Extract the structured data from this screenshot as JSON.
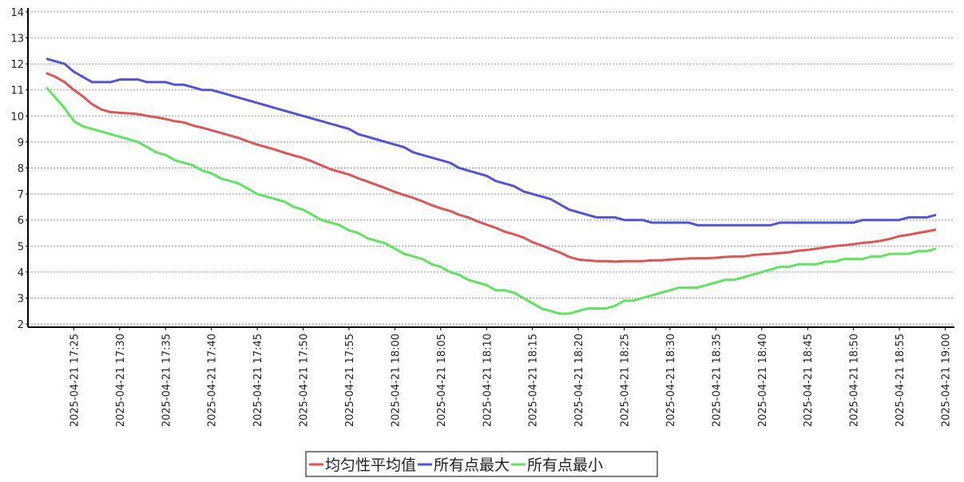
{
  "chart_data": {
    "type": "line",
    "x": [
      "2025-04-21 17:22",
      "2025-04-21 17:23",
      "2025-04-21 17:24",
      "2025-04-21 17:25",
      "2025-04-21 17:26",
      "2025-04-21 17:27",
      "2025-04-21 17:28",
      "2025-04-21 17:29",
      "2025-04-21 17:30",
      "2025-04-21 17:31",
      "2025-04-21 17:32",
      "2025-04-21 17:33",
      "2025-04-21 17:34",
      "2025-04-21 17:35",
      "2025-04-21 17:36",
      "2025-04-21 17:37",
      "2025-04-21 17:38",
      "2025-04-21 17:39",
      "2025-04-21 17:40",
      "2025-04-21 17:41",
      "2025-04-21 17:42",
      "2025-04-21 17:43",
      "2025-04-21 17:44",
      "2025-04-21 17:45",
      "2025-04-21 17:46",
      "2025-04-21 17:47",
      "2025-04-21 17:48",
      "2025-04-21 17:49",
      "2025-04-21 17:50",
      "2025-04-21 17:51",
      "2025-04-21 17:52",
      "2025-04-21 17:53",
      "2025-04-21 17:54",
      "2025-04-21 17:55",
      "2025-04-21 17:56",
      "2025-04-21 17:57",
      "2025-04-21 17:58",
      "2025-04-21 17:59",
      "2025-04-21 18:00",
      "2025-04-21 18:01",
      "2025-04-21 18:02",
      "2025-04-21 18:03",
      "2025-04-21 18:04",
      "2025-04-21 18:05",
      "2025-04-21 18:06",
      "2025-04-21 18:07",
      "2025-04-21 18:08",
      "2025-04-21 18:09",
      "2025-04-21 18:10",
      "2025-04-21 18:11",
      "2025-04-21 18:12",
      "2025-04-21 18:13",
      "2025-04-21 18:14",
      "2025-04-21 18:15",
      "2025-04-21 18:16",
      "2025-04-21 18:17",
      "2025-04-21 18:18",
      "2025-04-21 18:19",
      "2025-04-21 18:20",
      "2025-04-21 18:21",
      "2025-04-21 18:22",
      "2025-04-21 18:23",
      "2025-04-21 18:24",
      "2025-04-21 18:25",
      "2025-04-21 18:26",
      "2025-04-21 18:27",
      "2025-04-21 18:28",
      "2025-04-21 18:29",
      "2025-04-21 18:30",
      "2025-04-21 18:31",
      "2025-04-21 18:32",
      "2025-04-21 18:33",
      "2025-04-21 18:34",
      "2025-04-21 18:35",
      "2025-04-21 18:36",
      "2025-04-21 18:37",
      "2025-04-21 18:38",
      "2025-04-21 18:39",
      "2025-04-21 18:40",
      "2025-04-21 18:41",
      "2025-04-21 18:42",
      "2025-04-21 18:43",
      "2025-04-21 18:44",
      "2025-04-21 18:45",
      "2025-04-21 18:46",
      "2025-04-21 18:47",
      "2025-04-21 18:48",
      "2025-04-21 18:49",
      "2025-04-21 18:50",
      "2025-04-21 18:51",
      "2025-04-21 18:52",
      "2025-04-21 18:53",
      "2025-04-21 18:54",
      "2025-04-21 18:55",
      "2025-04-21 18:56",
      "2025-04-21 18:57",
      "2025-04-21 18:58",
      "2025-04-21 18:59"
    ],
    "series": [
      {
        "name": "均匀性平均值",
        "color": "#e65252",
        "values": [
          11.65,
          11.5,
          11.3,
          11.0,
          10.75,
          10.45,
          10.25,
          10.15,
          10.12,
          10.1,
          10.07,
          10.0,
          9.95,
          9.88,
          9.8,
          9.75,
          9.63,
          9.55,
          9.45,
          9.35,
          9.25,
          9.15,
          9.02,
          8.9,
          8.8,
          8.7,
          8.58,
          8.48,
          8.38,
          8.25,
          8.1,
          7.95,
          7.85,
          7.75,
          7.6,
          7.48,
          7.35,
          7.22,
          7.08,
          6.96,
          6.85,
          6.72,
          6.57,
          6.45,
          6.35,
          6.2,
          6.1,
          5.95,
          5.82,
          5.7,
          5.55,
          5.45,
          5.33,
          5.15,
          5.02,
          4.88,
          4.75,
          4.58,
          4.48,
          4.45,
          4.42,
          4.42,
          4.4,
          4.42,
          4.42,
          4.42,
          4.45,
          4.45,
          4.48,
          4.5,
          4.52,
          4.53,
          4.53,
          4.55,
          4.58,
          4.6,
          4.6,
          4.65,
          4.68,
          4.7,
          4.73,
          4.76,
          4.82,
          4.85,
          4.9,
          4.95,
          5.0,
          5.03,
          5.07,
          5.12,
          5.15,
          5.2,
          5.28,
          5.38,
          5.43,
          5.5,
          5.56,
          5.63
        ]
      },
      {
        "name": "所有点最大",
        "color": "#5252e0",
        "values": [
          12.2,
          12.1,
          12.0,
          11.7,
          11.5,
          11.3,
          11.3,
          11.3,
          11.4,
          11.4,
          11.4,
          11.3,
          11.3,
          11.3,
          11.2,
          11.2,
          11.1,
          11.0,
          11.0,
          10.9,
          10.8,
          10.7,
          10.6,
          10.5,
          10.4,
          10.3,
          10.2,
          10.1,
          10.0,
          9.9,
          9.8,
          9.7,
          9.6,
          9.5,
          9.3,
          9.2,
          9.1,
          9.0,
          8.9,
          8.8,
          8.6,
          8.5,
          8.4,
          8.3,
          8.2,
          8.0,
          7.9,
          7.8,
          7.7,
          7.5,
          7.4,
          7.3,
          7.1,
          7.0,
          6.9,
          6.8,
          6.6,
          6.4,
          6.3,
          6.2,
          6.1,
          6.1,
          6.1,
          6.0,
          6.0,
          6.0,
          5.9,
          5.9,
          5.9,
          5.9,
          5.9,
          5.8,
          5.8,
          5.8,
          5.8,
          5.8,
          5.8,
          5.8,
          5.8,
          5.8,
          5.9,
          5.9,
          5.9,
          5.9,
          5.9,
          5.9,
          5.9,
          5.9,
          5.9,
          6.0,
          6.0,
          6.0,
          6.0,
          6.0,
          6.1,
          6.1,
          6.1,
          6.2
        ]
      },
      {
        "name": "所有点最小",
        "color": "#5ce65c",
        "values": [
          11.1,
          10.7,
          10.3,
          9.8,
          9.6,
          9.5,
          9.4,
          9.3,
          9.2,
          9.1,
          9.0,
          8.8,
          8.6,
          8.5,
          8.3,
          8.2,
          8.1,
          7.9,
          7.8,
          7.6,
          7.5,
          7.4,
          7.2,
          7.0,
          6.9,
          6.8,
          6.7,
          6.5,
          6.4,
          6.2,
          6.0,
          5.9,
          5.8,
          5.6,
          5.5,
          5.3,
          5.2,
          5.1,
          4.9,
          4.7,
          4.6,
          4.5,
          4.3,
          4.2,
          4.0,
          3.9,
          3.7,
          3.6,
          3.5,
          3.3,
          3.3,
          3.2,
          3.0,
          2.8,
          2.6,
          2.5,
          2.4,
          2.4,
          2.5,
          2.6,
          2.6,
          2.6,
          2.7,
          2.9,
          2.9,
          3.0,
          3.1,
          3.2,
          3.3,
          3.4,
          3.4,
          3.4,
          3.5,
          3.6,
          3.7,
          3.7,
          3.8,
          3.9,
          4.0,
          4.1,
          4.2,
          4.2,
          4.3,
          4.3,
          4.3,
          4.4,
          4.4,
          4.5,
          4.5,
          4.5,
          4.6,
          4.6,
          4.7,
          4.7,
          4.7,
          4.8,
          4.8,
          4.9
        ]
      }
    ],
    "xlim": [
      "2025-04-21 17:20",
      "2025-04-21 19:01"
    ],
    "xticks": [
      "2025-04-21 17:25",
      "2025-04-21 17:30",
      "2025-04-21 17:35",
      "2025-04-21 17:40",
      "2025-04-21 17:45",
      "2025-04-21 17:50",
      "2025-04-21 17:55",
      "2025-04-21 18:00",
      "2025-04-21 18:05",
      "2025-04-21 18:10",
      "2025-04-21 18:15",
      "2025-04-21 18:20",
      "2025-04-21 18:25",
      "2025-04-21 18:30",
      "2025-04-21 18:35",
      "2025-04-21 18:40",
      "2025-04-21 18:45",
      "2025-04-21 18:50",
      "2025-04-21 18:55",
      "2025-04-21 19:00"
    ],
    "ylim": [
      1.88,
      14.15
    ],
    "yticks": [
      2,
      3,
      4,
      5,
      6,
      7,
      8,
      9,
      10,
      11,
      12,
      13,
      14
    ],
    "grid": true,
    "legend": "bottom"
  }
}
